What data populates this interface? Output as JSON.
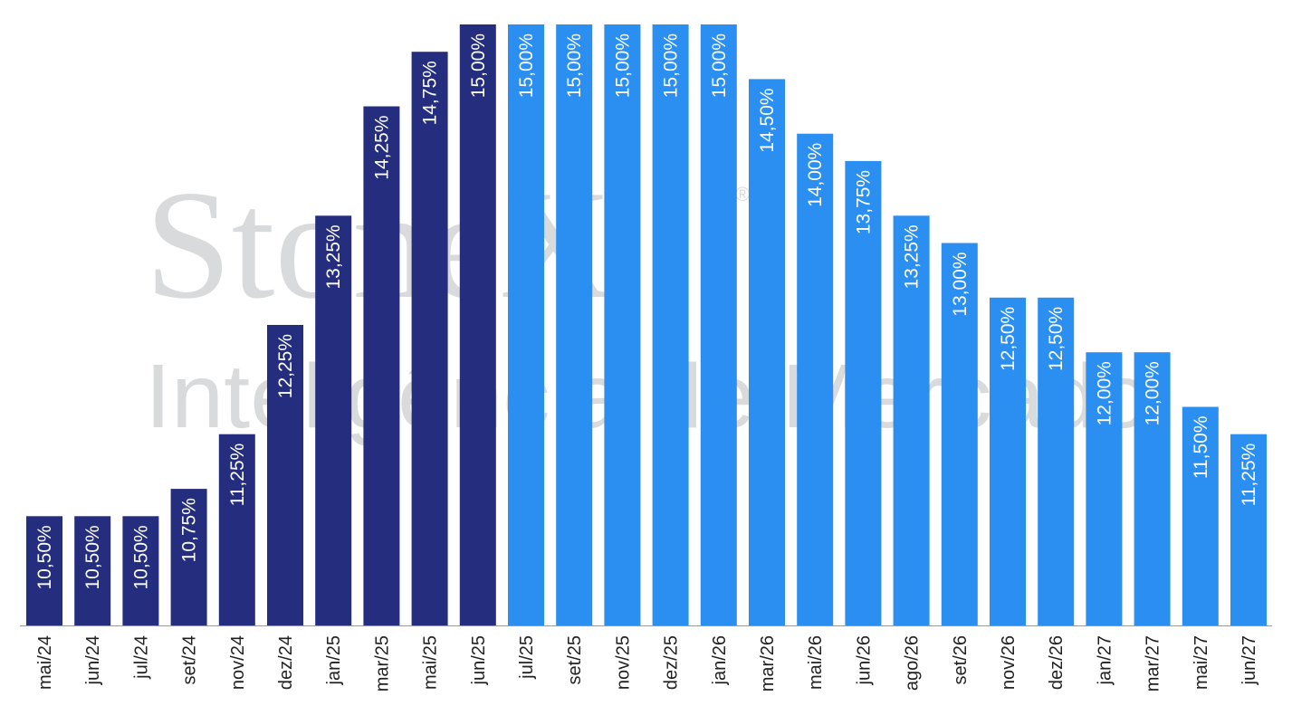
{
  "watermark": {
    "logo_text": "StoneX",
    "registered_mark": "®",
    "subtitle": "Inteligência de Mercado"
  },
  "colors": {
    "historical": "#252E7E",
    "forecast": "#2A8FF0",
    "label_text": "#FFFFFF",
    "axis_text": "#222222",
    "axis_line": "#9A9A9A",
    "watermark": "#D9DADC"
  },
  "chart_data": {
    "type": "bar",
    "title": "",
    "xlabel": "",
    "ylabel": "",
    "categories": [
      "mai/24",
      "jun/24",
      "jul/24",
      "set/24",
      "nov/24",
      "dez/24",
      "jan/25",
      "mar/25",
      "mai/25",
      "jun/25",
      "jul/25",
      "set/25",
      "nov/25",
      "dez/25",
      "jan/26",
      "mar/26",
      "mai/26",
      "jun/26",
      "ago/26",
      "set/26",
      "nov/26",
      "dez/26",
      "jan/27",
      "mar/27",
      "mai/27",
      "jun/27"
    ],
    "values": [
      10.5,
      10.5,
      10.5,
      10.75,
      11.25,
      12.25,
      13.25,
      14.25,
      14.75,
      15.0,
      15.0,
      15.0,
      15.0,
      15.0,
      15.0,
      14.5,
      14.0,
      13.75,
      13.25,
      13.0,
      12.5,
      12.5,
      12.0,
      12.0,
      11.5,
      11.25
    ],
    "value_labels": [
      "10,50%",
      "10,50%",
      "10,50%",
      "10,75%",
      "11,25%",
      "12,25%",
      "13,25%",
      "14,25%",
      "14,75%",
      "15,00%",
      "15,00%",
      "15,00%",
      "15,00%",
      "15,00%",
      "15,00%",
      "14,50%",
      "14,00%",
      "13,75%",
      "13,25%",
      "13,00%",
      "12,50%",
      "12,50%",
      "12,00%",
      "12,00%",
      "11,50%",
      "11,25%"
    ],
    "bar_status": [
      "historical",
      "historical",
      "historical",
      "historical",
      "historical",
      "historical",
      "historical",
      "historical",
      "historical",
      "historical",
      "forecast",
      "forecast",
      "forecast",
      "forecast",
      "forecast",
      "forecast",
      "forecast",
      "forecast",
      "forecast",
      "forecast",
      "forecast",
      "forecast",
      "forecast",
      "forecast",
      "forecast",
      "forecast"
    ],
    "ylim": [
      9.5,
      15.0
    ],
    "grid": false,
    "legend": "none"
  }
}
